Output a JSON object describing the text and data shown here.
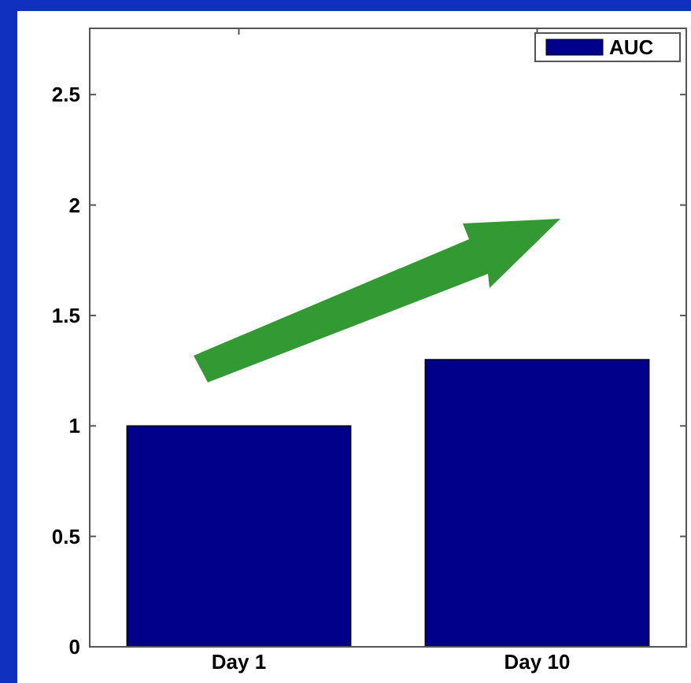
{
  "chart_data": {
    "type": "bar",
    "categories": [
      "Day 1",
      "Day 10"
    ],
    "series": [
      {
        "name": "AUC",
        "color": "#00008b",
        "values": [
          1.0,
          1.3
        ]
      }
    ],
    "ylim": [
      0,
      2.8
    ],
    "yticks": [
      0,
      0.5,
      1,
      1.5,
      2,
      2.5
    ],
    "legend": "top right",
    "grid": false
  }
}
